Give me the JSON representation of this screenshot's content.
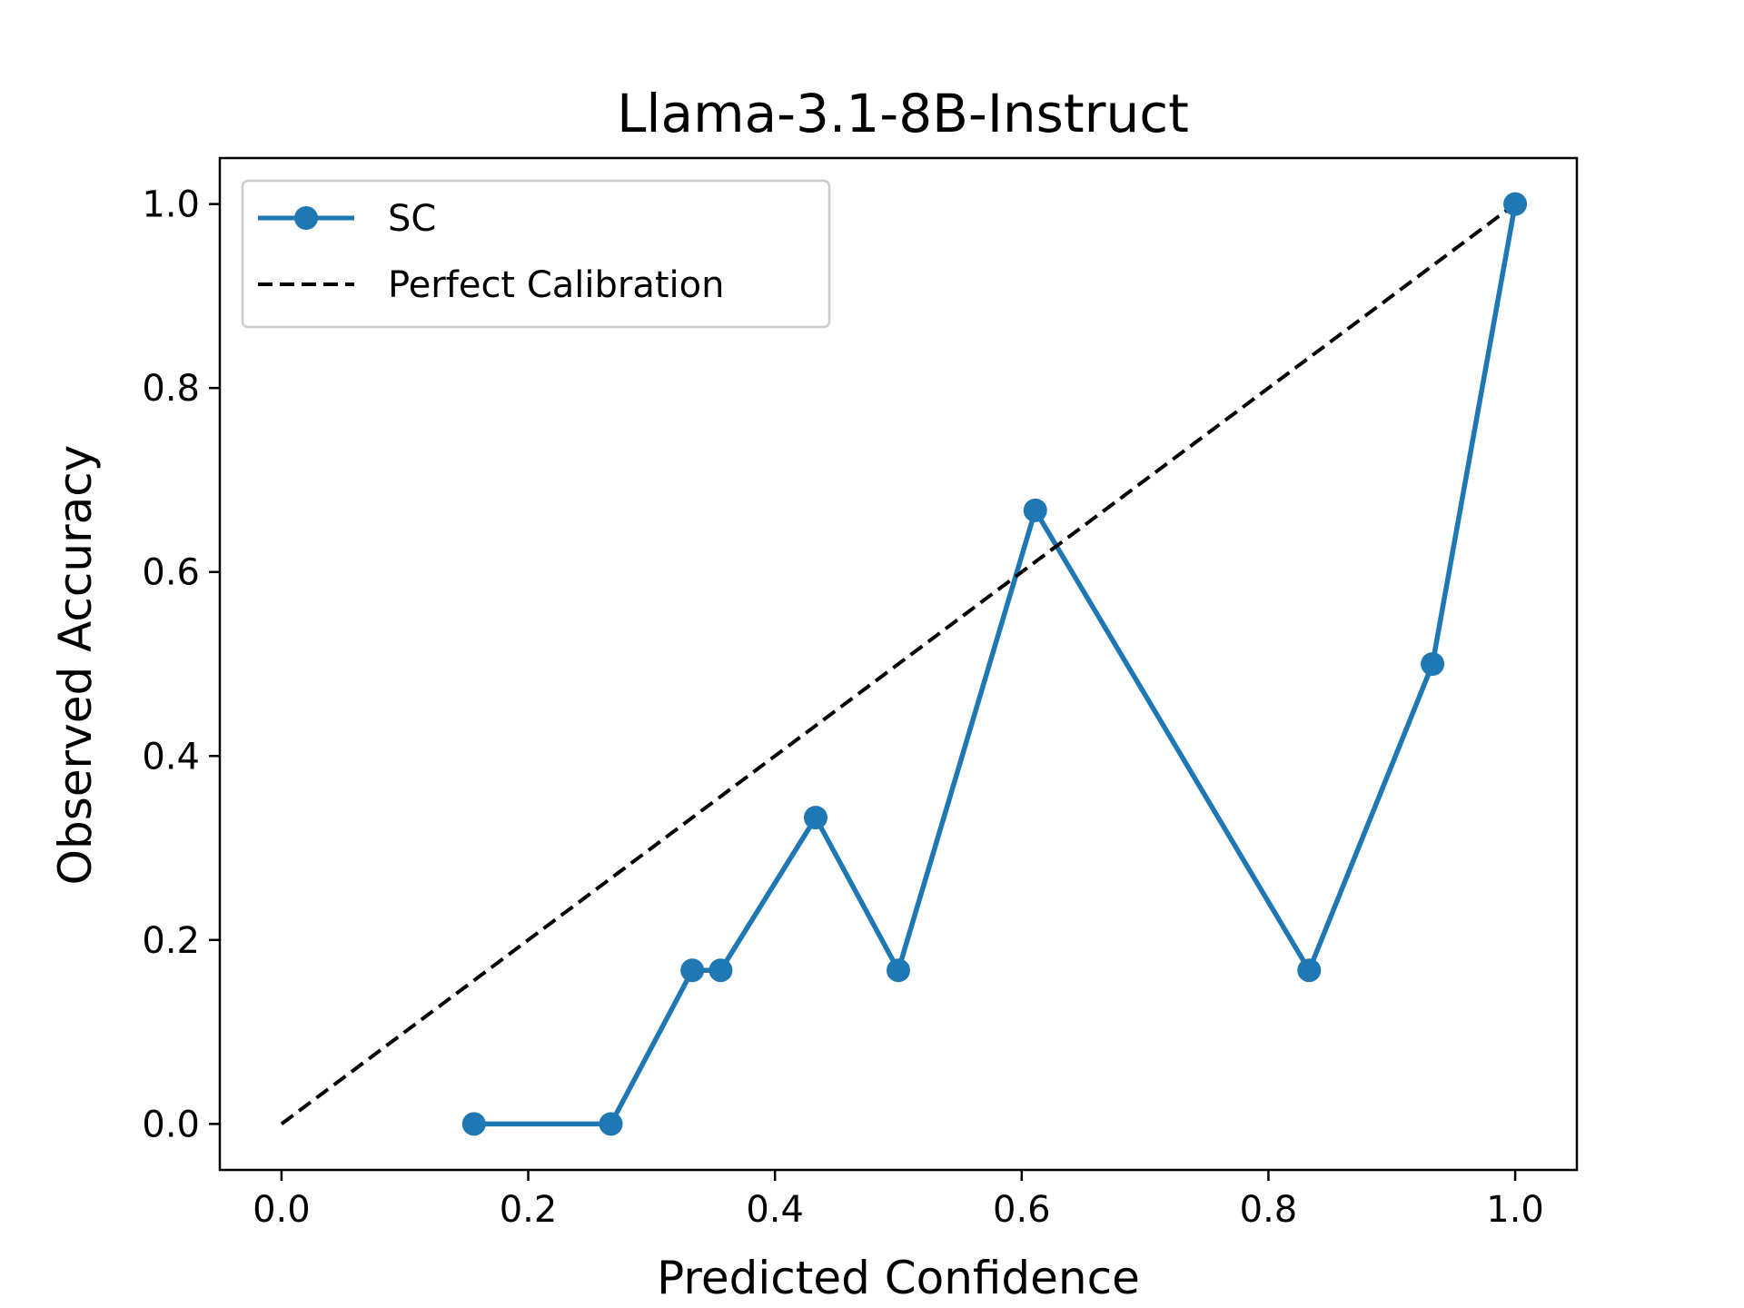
{
  "chart_data": {
    "type": "line",
    "title": "Llama-3.1-8B-Instruct",
    "xlabel": "Predicted Confidence",
    "ylabel": "Observed Accuracy",
    "xlim": [
      -0.05,
      1.05
    ],
    "ylim": [
      -0.05,
      1.05
    ],
    "xticks": [
      0.0,
      0.2,
      0.4,
      0.6,
      0.8,
      1.0
    ],
    "yticks": [
      0.0,
      0.2,
      0.4,
      0.6,
      0.8,
      1.0
    ],
    "xtick_labels": [
      "0.0",
      "0.2",
      "0.4",
      "0.6",
      "0.8",
      "1.0"
    ],
    "ytick_labels": [
      "0.0",
      "0.2",
      "0.4",
      "0.6",
      "0.8",
      "1.0"
    ],
    "grid": false,
    "legend_position": "upper-left",
    "series": [
      {
        "name": "SC",
        "color": "#1f77b4",
        "style": "solid-with-markers",
        "x": [
          0.156,
          0.267,
          0.333,
          0.356,
          0.433,
          0.5,
          0.611,
          0.833,
          0.933,
          1.0
        ],
        "y": [
          0.0,
          0.0,
          0.167,
          0.167,
          0.333,
          0.167,
          0.667,
          0.167,
          0.5,
          1.0
        ]
      },
      {
        "name": "Perfect Calibration",
        "color": "#000000",
        "style": "dashed",
        "x": [
          0.0,
          1.0
        ],
        "y": [
          0.0,
          1.0
        ]
      }
    ]
  }
}
